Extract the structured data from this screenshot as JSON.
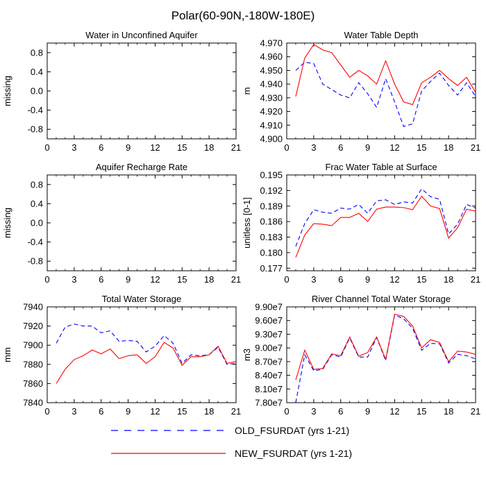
{
  "page": {
    "title": "Polar(60-90N,-180W-180E)"
  },
  "legend": {
    "entries": [
      {
        "label": "OLD_FSURDAT (yrs 1-21)",
        "color": "#0000ff",
        "dash": true
      },
      {
        "label": "NEW_FSURDAT (yrs 1-21)",
        "color": "#ff0000",
        "dash": false
      }
    ]
  },
  "chart_data": [
    {
      "type": "line",
      "title": "Water in Unconfined Aquifer",
      "ylabel": "missing",
      "xlabel": "",
      "xlim": [
        0,
        21
      ],
      "ylim": [
        -1.0,
        1.0
      ],
      "x_ticks": [
        "0",
        "3",
        "6",
        "9",
        "12",
        "15",
        "18",
        "21"
      ],
      "y_ticks": [
        "-0.8",
        "-0.4",
        "0.0",
        "0.4",
        "0.8"
      ],
      "y_tick_values": [
        -0.8,
        -0.4,
        0.0,
        0.4,
        0.8
      ],
      "x": [],
      "series": []
    },
    {
      "type": "line",
      "title": "Water Table Depth",
      "ylabel": "m",
      "xlabel": "",
      "xlim": [
        0,
        21
      ],
      "ylim": [
        4.9,
        4.97
      ],
      "x_ticks": [
        "0",
        "3",
        "6",
        "9",
        "12",
        "15",
        "18",
        "21"
      ],
      "y_ticks": [
        "4.900",
        "4.910",
        "4.920",
        "4.930",
        "4.940",
        "4.950",
        "4.960",
        "4.970"
      ],
      "y_tick_values": [
        4.9,
        4.91,
        4.92,
        4.93,
        4.94,
        4.95,
        4.96,
        4.97
      ],
      "x": [
        1,
        2,
        3,
        4,
        5,
        6,
        7,
        8,
        9,
        10,
        11,
        12,
        13,
        14,
        15,
        16,
        17,
        18,
        19,
        20,
        21
      ],
      "series": [
        {
          "name": "OLD_FSURDAT (yrs 1-21)",
          "values": [
            4.95,
            4.956,
            4.955,
            4.94,
            4.936,
            4.932,
            4.93,
            4.941,
            4.933,
            4.923,
            4.944,
            4.927,
            4.909,
            4.911,
            4.935,
            4.942,
            4.948,
            4.939,
            4.932,
            4.941,
            4.931
          ]
        },
        {
          "name": "NEW_FSURDAT (yrs 1-21)",
          "values": [
            4.931,
            4.959,
            4.969,
            4.965,
            4.963,
            4.954,
            4.945,
            4.95,
            4.946,
            4.94,
            4.957,
            4.94,
            4.927,
            4.925,
            4.941,
            4.945,
            4.95,
            4.944,
            4.939,
            4.945,
            4.934
          ]
        }
      ]
    },
    {
      "type": "line",
      "title": "Aquifer Recharge Rate",
      "ylabel": "missing",
      "xlabel": "",
      "xlim": [
        0,
        21
      ],
      "ylim": [
        -1.0,
        1.0
      ],
      "x_ticks": [
        "0",
        "3",
        "6",
        "9",
        "12",
        "15",
        "18",
        "21"
      ],
      "y_ticks": [
        "-0.8",
        "-0.4",
        "0.0",
        "0.4",
        "0.8"
      ],
      "y_tick_values": [
        -0.8,
        -0.4,
        0.0,
        0.4,
        0.8
      ],
      "x": [],
      "series": []
    },
    {
      "type": "line",
      "title": "Frac Water Table at Surface",
      "ylabel": "unitless [0-1]",
      "xlabel": "",
      "xlim": [
        0,
        21
      ],
      "ylim": [
        0.1765,
        0.195
      ],
      "x_ticks": [
        "0",
        "3",
        "6",
        "9",
        "12",
        "15",
        "18",
        "21"
      ],
      "y_ticks": [
        "0.177",
        "0.180",
        "0.183",
        "0.186",
        "0.189",
        "0.192",
        "0.195"
      ],
      "y_tick_values": [
        0.177,
        0.18,
        0.183,
        0.186,
        0.189,
        0.192,
        0.195
      ],
      "x": [
        1,
        2,
        3,
        4,
        5,
        6,
        7,
        8,
        9,
        10,
        11,
        12,
        13,
        14,
        15,
        16,
        17,
        18,
        19,
        20,
        21
      ],
      "series": [
        {
          "name": "OLD_FSURDAT (yrs 1-21)",
          "values": [
            0.1812,
            0.1856,
            0.1883,
            0.1878,
            0.1876,
            0.1886,
            0.1884,
            0.1893,
            0.1876,
            0.19,
            0.1902,
            0.1893,
            0.1898,
            0.1896,
            0.1923,
            0.1908,
            0.1903,
            0.1836,
            0.1855,
            0.1893,
            0.1886
          ]
        },
        {
          "name": "NEW_FSURDAT (yrs 1-21)",
          "values": [
            0.1791,
            0.1834,
            0.1856,
            0.1855,
            0.1852,
            0.1868,
            0.1868,
            0.1876,
            0.186,
            0.1884,
            0.1888,
            0.1888,
            0.1887,
            0.1883,
            0.1909,
            0.189,
            0.1885,
            0.1828,
            0.1848,
            0.1884,
            0.188
          ]
        }
      ]
    },
    {
      "type": "line",
      "title": "Total Water Storage",
      "ylabel": "mm",
      "xlabel": "",
      "xlim": [
        0,
        21
      ],
      "ylim": [
        7840,
        7940
      ],
      "x_ticks": [
        "0",
        "3",
        "6",
        "9",
        "12",
        "15",
        "18",
        "21"
      ],
      "y_ticks": [
        "7840",
        "7860",
        "7880",
        "7900",
        "7920",
        "7940"
      ],
      "y_tick_values": [
        7840,
        7860,
        7880,
        7900,
        7920,
        7940
      ],
      "x": [
        1,
        2,
        3,
        4,
        5,
        6,
        7,
        8,
        9,
        10,
        11,
        12,
        13,
        14,
        15,
        16,
        17,
        18,
        19,
        20,
        21
      ],
      "series": [
        {
          "name": "OLD_FSURDAT (yrs 1-21)",
          "values": [
            7902,
            7919,
            7922,
            7920,
            7920,
            7913,
            7915,
            7904,
            7905,
            7904,
            7893,
            7899,
            7910,
            7902,
            7881,
            7890,
            7889,
            7890,
            7898,
            7880,
            7881
          ]
        },
        {
          "name": "NEW_FSURDAT (yrs 1-21)",
          "values": [
            7860,
            7875,
            7885,
            7889,
            7895,
            7891,
            7896,
            7886,
            7889,
            7890,
            7881,
            7888,
            7903,
            7897,
            7879,
            7888,
            7888,
            7890,
            7899,
            7881,
            7883
          ]
        }
      ]
    },
    {
      "type": "line",
      "title": "River Channel Total Water Storage",
      "ylabel": "m3",
      "xlabel": "",
      "xlim": [
        0,
        21
      ],
      "ylim": [
        78000000,
        99000000
      ],
      "x_ticks": [
        "0",
        "3",
        "6",
        "9",
        "12",
        "15",
        "18",
        "21"
      ],
      "y_ticks": [
        "7.80e7",
        "8.10e7",
        "8.40e7",
        "8.70e7",
        "9.00e7",
        "9.30e7",
        "9.60e7",
        "9.90e7"
      ],
      "y_tick_values": [
        78000000,
        81000000,
        84000000,
        87000000,
        90000000,
        93000000,
        96000000,
        99000000
      ],
      "x": [
        1,
        2,
        3,
        4,
        5,
        6,
        7,
        8,
        9,
        10,
        11,
        12,
        13,
        14,
        15,
        16,
        17,
        18,
        19,
        20,
        21
      ],
      "series": [
        {
          "name": "OLD_FSURDAT (yrs 1-21)",
          "values": [
            78000000,
            88500000,
            85000000,
            85300000,
            88500000,
            88000000,
            92200000,
            88000000,
            88000000,
            92300000,
            87200000,
            97200000,
            96400000,
            94300000,
            89500000,
            91000000,
            90900000,
            86700000,
            88600000,
            88300000,
            87600000
          ]
        },
        {
          "name": "NEW_FSURDAT (yrs 1-21)",
          "values": [
            83000000,
            89500000,
            85300000,
            85500000,
            88700000,
            88300000,
            92400000,
            88200000,
            89000000,
            92400000,
            87500000,
            97400000,
            96900000,
            94800000,
            90000000,
            91800000,
            91200000,
            87000000,
            89300000,
            89100000,
            88600000
          ]
        }
      ]
    }
  ]
}
